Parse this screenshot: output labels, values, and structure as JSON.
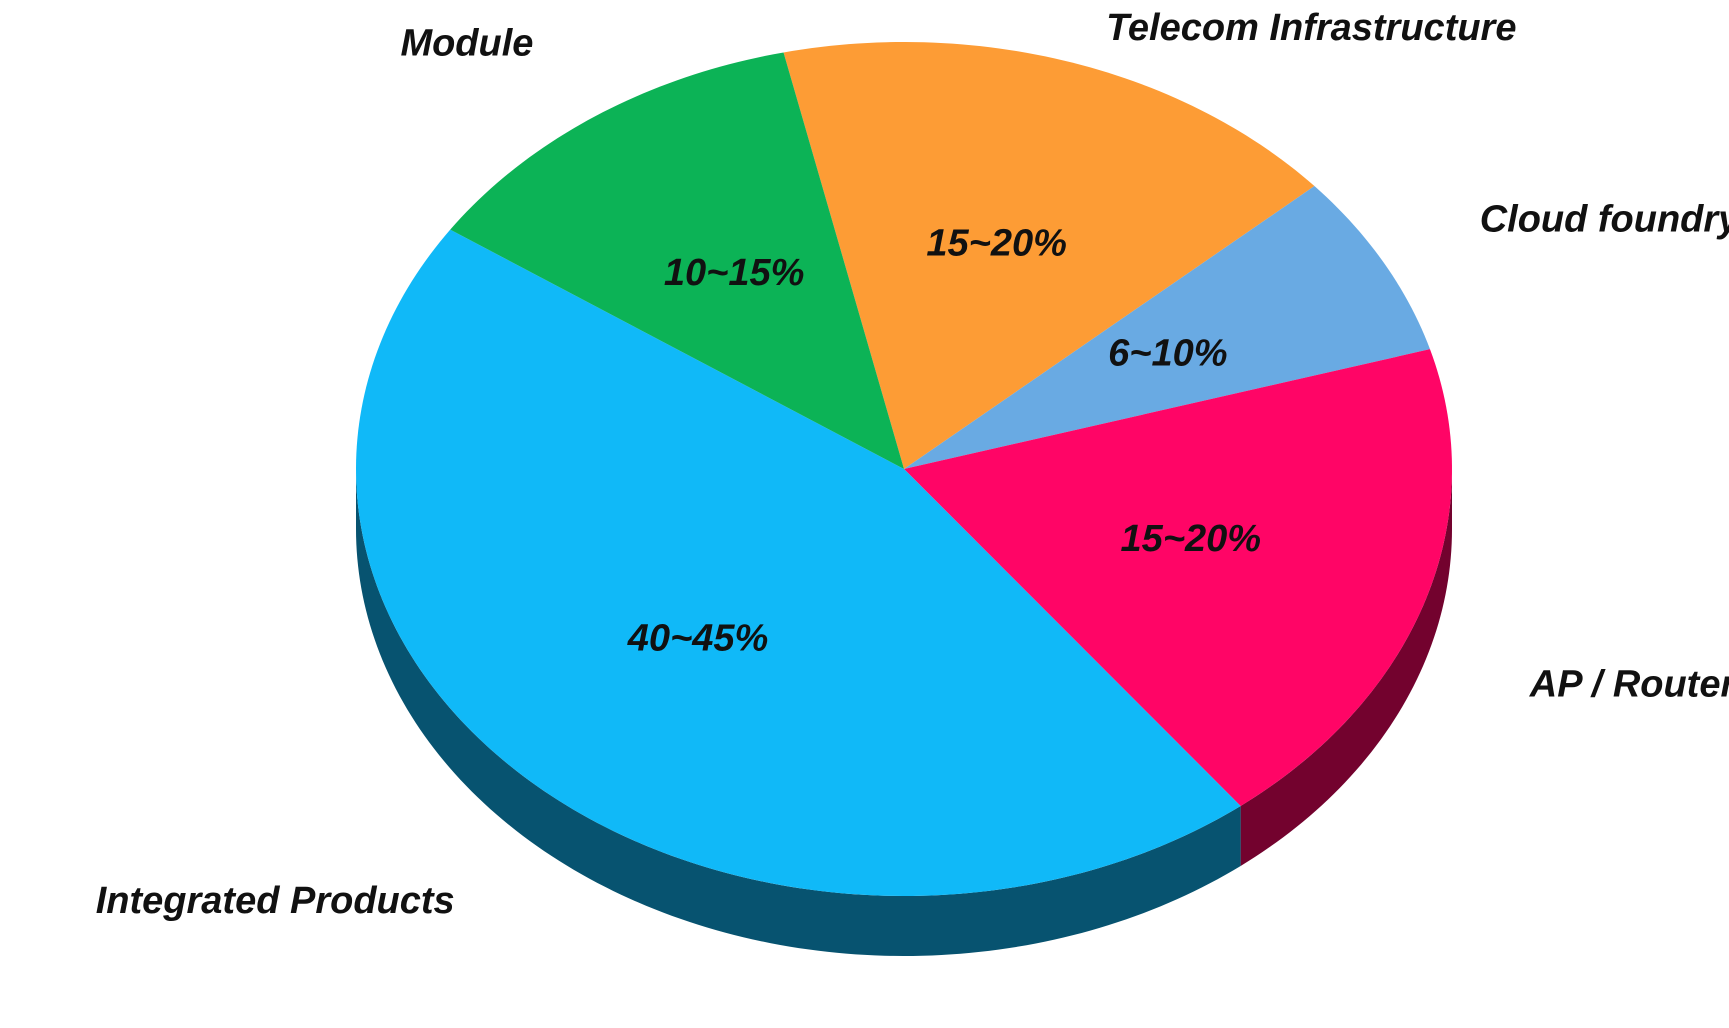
{
  "chart_data": {
    "type": "pie",
    "categories": [
      "Telecom Infrastructure",
      "Cloud foundry",
      "AP / Router",
      "Integrated Products",
      "Module"
    ],
    "values": [
      17,
      7,
      19,
      45,
      12
    ],
    "value_labels": [
      "15~20%",
      "6~10%",
      "15~20%",
      "40~45%",
      "10~15%"
    ],
    "colors": [
      "#fd9c35",
      "#69aae3",
      "#ff0566",
      "#10b9f8",
      "#0cb356"
    ]
  }
}
